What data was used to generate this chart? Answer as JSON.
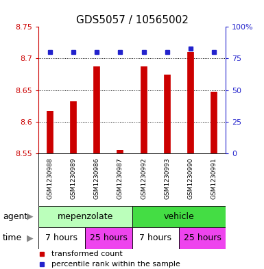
{
  "title": "GDS5057 / 10565002",
  "samples": [
    "GSM1230988",
    "GSM1230989",
    "GSM1230986",
    "GSM1230987",
    "GSM1230992",
    "GSM1230993",
    "GSM1230990",
    "GSM1230991"
  ],
  "red_values": [
    8.617,
    8.632,
    8.688,
    8.555,
    8.688,
    8.675,
    8.71,
    8.648
  ],
  "blue_values": [
    80,
    80,
    80,
    80,
    80,
    80,
    83,
    80
  ],
  "ylim_left": [
    8.55,
    8.75
  ],
  "ylim_right": [
    0,
    100
  ],
  "yticks_left": [
    8.55,
    8.6,
    8.65,
    8.7,
    8.75
  ],
  "yticks_right": [
    0,
    25,
    50,
    75,
    100
  ],
  "ytick_labels_left": [
    "8.55",
    "8.6",
    "8.65",
    "8.7",
    "8.75"
  ],
  "ytick_labels_right": [
    "0",
    "25",
    "50",
    "75",
    "100%"
  ],
  "grid_lines": [
    8.6,
    8.65,
    8.7
  ],
  "bar_color": "#cc0000",
  "dot_color": "#2222cc",
  "agent_data": [
    {
      "text": "mepenzolate",
      "start": 0,
      "end": 4,
      "color": "#bbffbb"
    },
    {
      "text": "vehicle",
      "start": 4,
      "end": 8,
      "color": "#44dd44"
    }
  ],
  "time_data": [
    {
      "text": "7 hours",
      "start": 0,
      "end": 2,
      "color": "#ffffff"
    },
    {
      "text": "25 hours",
      "start": 2,
      "end": 4,
      "color": "#ee44ee"
    },
    {
      "text": "7 hours",
      "start": 4,
      "end": 6,
      "color": "#ffffff"
    },
    {
      "text": "25 hours",
      "start": 6,
      "end": 8,
      "color": "#ee44ee"
    }
  ],
  "legend_items": [
    {
      "color": "#cc0000",
      "label": "transformed count"
    },
    {
      "color": "#2222cc",
      "label": "percentile rank within the sample"
    }
  ],
  "baseline": 8.55,
  "bar_linewidth": 7,
  "sample_label_fontsize": 6.5,
  "row_label_fontsize": 9,
  "row_text_fontsize": 9,
  "tick_fontsize": 8,
  "title_fontsize": 11,
  "legend_fontsize": 8
}
